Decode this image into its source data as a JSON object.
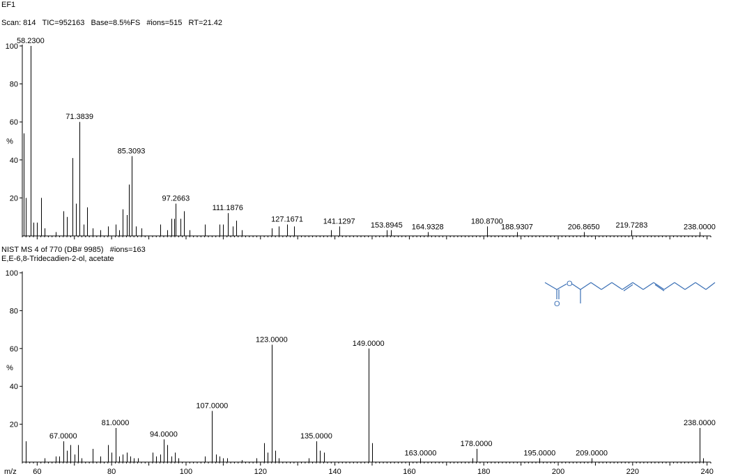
{
  "header": {
    "title": "EF1",
    "scan_info": "Scan: 814   TIC=952163   Base=8.5%FS   #ions=515   RT=21.42"
  },
  "library": {
    "info": "NIST MS 4 of 770 (DB# 9985)   #ions=163",
    "compound": "E,E-6,8-Tridecadien-2-ol, acetate"
  },
  "structure_color": "#3a6fb5",
  "chart_data": [
    {
      "type": "bar",
      "panel": "sample-spectrum",
      "ylabel": "%",
      "ylim": [
        0,
        100
      ],
      "yticks": [
        20,
        40,
        60,
        80,
        100
      ],
      "xlim": [
        56,
        241
      ],
      "peaks": [
        [
          56.3,
          54
        ],
        [
          57.0,
          20
        ],
        [
          58.23,
          100
        ],
        [
          59.0,
          7
        ],
        [
          60.0,
          7
        ],
        [
          61.0,
          20
        ],
        [
          62.0,
          4
        ],
        [
          65.0,
          2
        ],
        [
          67.0,
          13
        ],
        [
          68.0,
          10
        ],
        [
          69.4,
          41
        ],
        [
          70.4,
          17
        ],
        [
          71.38,
          60
        ],
        [
          72.5,
          6
        ],
        [
          73.5,
          15
        ],
        [
          75.0,
          4
        ],
        [
          77.0,
          3
        ],
        [
          79.0,
          5
        ],
        [
          81.0,
          6
        ],
        [
          82.0,
          3
        ],
        [
          83.0,
          14
        ],
        [
          84.0,
          11
        ],
        [
          84.6,
          27
        ],
        [
          85.31,
          42
        ],
        [
          86.5,
          5
        ],
        [
          88.0,
          4
        ],
        [
          93.0,
          6
        ],
        [
          95.0,
          3
        ],
        [
          96.0,
          9
        ],
        [
          96.8,
          9
        ],
        [
          97.27,
          17
        ],
        [
          98.5,
          9
        ],
        [
          99.5,
          13
        ],
        [
          101.0,
          3
        ],
        [
          105.0,
          6
        ],
        [
          109.0,
          6
        ],
        [
          110.0,
          6
        ],
        [
          111.19,
          12
        ],
        [
          112.5,
          5
        ],
        [
          113.5,
          8
        ],
        [
          115.0,
          3
        ],
        [
          123.0,
          4
        ],
        [
          125.0,
          5
        ],
        [
          127.17,
          6
        ],
        [
          129.0,
          5
        ],
        [
          139.0,
          3
        ],
        [
          141.13,
          5
        ],
        [
          153.89,
          3
        ],
        [
          155.0,
          3
        ],
        [
          164.93,
          2
        ],
        [
          180.87,
          5
        ],
        [
          188.93,
          2
        ],
        [
          206.87,
          2
        ],
        [
          219.73,
          3
        ],
        [
          238.0,
          2
        ]
      ],
      "labels": [
        {
          "x": 58.23,
          "y": 100,
          "text": "58.2300"
        },
        {
          "x": 71.38,
          "y": 60,
          "text": "71.3839"
        },
        {
          "x": 85.31,
          "y": 42,
          "text": "85.3093"
        },
        {
          "x": 97.27,
          "y": 17,
          "text": "97.2663"
        },
        {
          "x": 111.19,
          "y": 12,
          "text": "111.1876"
        },
        {
          "x": 127.17,
          "y": 6,
          "text": "127.1671"
        },
        {
          "x": 141.13,
          "y": 5,
          "text": "141.1297"
        },
        {
          "x": 153.89,
          "y": 3,
          "text": "153.8945"
        },
        {
          "x": 164.93,
          "y": 2,
          "text": "164.9328"
        },
        {
          "x": 180.87,
          "y": 5,
          "text": "180.8700"
        },
        {
          "x": 188.93,
          "y": 2,
          "text": "188.9307"
        },
        {
          "x": 206.87,
          "y": 2,
          "text": "206.8650"
        },
        {
          "x": 219.73,
          "y": 3,
          "text": "219.7283"
        },
        {
          "x": 238.0,
          "y": 2,
          "text": "238.0000"
        }
      ]
    },
    {
      "type": "bar",
      "panel": "library-spectrum",
      "ylabel": "%",
      "xlabel": "m/z",
      "ylim": [
        0,
        100
      ],
      "yticks": [
        20,
        40,
        60,
        80,
        100
      ],
      "xlim": [
        56,
        241
      ],
      "xticks": [
        60,
        80,
        100,
        120,
        140,
        160,
        180,
        200,
        220,
        240
      ],
      "peaks": [
        [
          57,
          11
        ],
        [
          62,
          2
        ],
        [
          65,
          3
        ],
        [
          66,
          3
        ],
        [
          67,
          11
        ],
        [
          68,
          6
        ],
        [
          69,
          9
        ],
        [
          70,
          4
        ],
        [
          71,
          9
        ],
        [
          72,
          2
        ],
        [
          75,
          7
        ],
        [
          77,
          3
        ],
        [
          79,
          9
        ],
        [
          80,
          5
        ],
        [
          81,
          18
        ],
        [
          82,
          3
        ],
        [
          83,
          4
        ],
        [
          84,
          5
        ],
        [
          85,
          3
        ],
        [
          86,
          2
        ],
        [
          87,
          2
        ],
        [
          91,
          5
        ],
        [
          92,
          3
        ],
        [
          93,
          4
        ],
        [
          94,
          12
        ],
        [
          95,
          9
        ],
        [
          96,
          3
        ],
        [
          97,
          5
        ],
        [
          98,
          2
        ],
        [
          105,
          3
        ],
        [
          107,
          27
        ],
        [
          108,
          4
        ],
        [
          109,
          3
        ],
        [
          110,
          2
        ],
        [
          111,
          2
        ],
        [
          115,
          1
        ],
        [
          119,
          2
        ],
        [
          121,
          10
        ],
        [
          122,
          5
        ],
        [
          123,
          62
        ],
        [
          124,
          6
        ],
        [
          125,
          2
        ],
        [
          133,
          2
        ],
        [
          135,
          11
        ],
        [
          136,
          6
        ],
        [
          137,
          5
        ],
        [
          149,
          60
        ],
        [
          150,
          10
        ],
        [
          163,
          2
        ],
        [
          177,
          2
        ],
        [
          178,
          7
        ],
        [
          195,
          2
        ],
        [
          209,
          2
        ],
        [
          238,
          18
        ],
        [
          239,
          2
        ]
      ],
      "labels": [
        {
          "x": 67,
          "y": 11,
          "text": "67.0000"
        },
        {
          "x": 81,
          "y": 18,
          "text": "81.0000"
        },
        {
          "x": 94,
          "y": 12,
          "text": "94.0000"
        },
        {
          "x": 107,
          "y": 27,
          "text": "107.0000"
        },
        {
          "x": 123,
          "y": 62,
          "text": "123.0000"
        },
        {
          "x": 135,
          "y": 11,
          "text": "135.0000"
        },
        {
          "x": 149,
          "y": 60,
          "text": "149.0000"
        },
        {
          "x": 163,
          "y": 2,
          "text": "163.0000"
        },
        {
          "x": 178,
          "y": 7,
          "text": "178.0000"
        },
        {
          "x": 195,
          "y": 2,
          "text": "195.0000"
        },
        {
          "x": 209,
          "y": 2,
          "text": "209.0000"
        },
        {
          "x": 238,
          "y": 18,
          "text": "238.0000"
        }
      ]
    }
  ]
}
